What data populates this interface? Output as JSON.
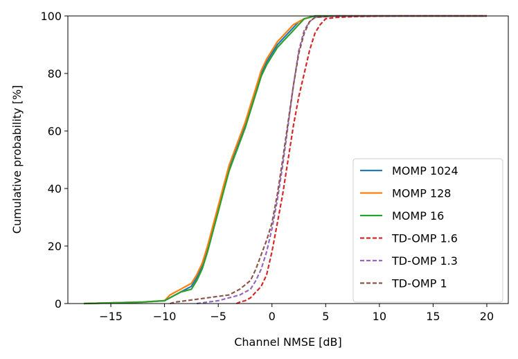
{
  "chart_data": {
    "type": "line",
    "title": "",
    "xlabel": "Channel NMSE [dB]",
    "ylabel": "Cumulative probability [%]",
    "xlim": [
      -19,
      22
    ],
    "ylim": [
      0,
      100
    ],
    "xticks": [
      -15,
      -10,
      -5,
      0,
      5,
      10,
      15,
      20
    ],
    "xtick_labels": [
      "−15",
      "−10",
      "−5",
      "0",
      "5",
      "10",
      "15",
      "20"
    ],
    "yticks": [
      0,
      20,
      40,
      60,
      80,
      100
    ],
    "ytick_labels": [
      "0",
      "20",
      "40",
      "60",
      "80",
      "100"
    ],
    "grid": false,
    "legend_position": "lower-right",
    "series": [
      {
        "name": "MOMP 1024",
        "color": "#1f77b4",
        "dash": "solid",
        "x": [
          -17.5,
          -12,
          -10,
          -9.5,
          -8.5,
          -7.5,
          -7,
          -6.5,
          -6,
          -5.5,
          -5,
          -4.5,
          -4,
          -3.5,
          -3,
          -2.5,
          -2,
          -1.5,
          -1,
          -0.5,
          0,
          0.5,
          1,
          1.5,
          2,
          2.5,
          3,
          3.5,
          4,
          20
        ],
        "y": [
          0,
          0.5,
          1,
          2,
          4,
          6,
          9,
          13,
          19,
          26,
          33,
          40,
          47,
          52,
          57,
          62,
          68,
          74,
          80,
          84,
          87,
          90,
          92,
          94,
          96,
          98,
          99,
          99.5,
          100,
          100
        ]
      },
      {
        "name": "MOMP 128",
        "color": "#ff7f0e",
        "dash": "solid",
        "x": [
          -17.5,
          -12,
          -10,
          -9.5,
          -8.5,
          -7.5,
          -7,
          -6.5,
          -6,
          -5.5,
          -5,
          -4.5,
          -4,
          -3.5,
          -3,
          -2.5,
          -2,
          -1.5,
          -1,
          -0.5,
          0,
          0.5,
          1,
          1.5,
          2,
          2.5,
          3,
          3.5,
          4,
          20
        ],
        "y": [
          0,
          0.5,
          1,
          3,
          5,
          7,
          10,
          14,
          20,
          27,
          34,
          41,
          48,
          53,
          58,
          63,
          69,
          75,
          81,
          85,
          88,
          91,
          93,
          95,
          97,
          98,
          99,
          99.5,
          100,
          100
        ]
      },
      {
        "name": "MOMP 16",
        "color": "#2ca02c",
        "dash": "solid",
        "x": [
          -17.5,
          -12,
          -10,
          -9.5,
          -8.5,
          -7.5,
          -7,
          -6.5,
          -6,
          -5.5,
          -5,
          -4.5,
          -4,
          -3.5,
          -3,
          -2.5,
          -2,
          -1.5,
          -1,
          -0.5,
          0,
          0.5,
          1,
          1.5,
          2,
          2.5,
          3,
          3.5,
          4,
          20
        ],
        "y": [
          0,
          0.5,
          1,
          2,
          4,
          5,
          8,
          12,
          18,
          25,
          32,
          39,
          46,
          51,
          56,
          61,
          67,
          73,
          79,
          83,
          86,
          89,
          91,
          93,
          95,
          97,
          99,
          99.5,
          100,
          100
        ]
      },
      {
        "name": "TD-OMP 1.6",
        "color": "#d62728",
        "dash": "dashed",
        "x": [
          -3.3,
          -3,
          -2.5,
          -2,
          -1.5,
          -1,
          -0.5,
          0,
          0.5,
          1,
          1.5,
          2,
          2.5,
          3,
          3.5,
          4,
          4.5,
          5,
          6,
          8,
          12,
          20
        ],
        "y": [
          0,
          0.5,
          1,
          2,
          4,
          6,
          10,
          18,
          28,
          38,
          50,
          62,
          72,
          80,
          88,
          94,
          97,
          99,
          99.5,
          99.8,
          100,
          100
        ]
      },
      {
        "name": "TD-OMP 1.3",
        "color": "#9467bd",
        "dash": "dashed",
        "x": [
          -7,
          -6,
          -5,
          -4,
          -3,
          -2,
          -1.5,
          -1,
          -0.5,
          0,
          0.5,
          1,
          1.5,
          2,
          2.5,
          3,
          3.5,
          4,
          6,
          20
        ],
        "y": [
          0,
          0.5,
          1,
          2,
          3,
          5,
          8,
          12,
          18,
          26,
          36,
          48,
          62,
          76,
          88,
          95,
          98,
          99.5,
          100,
          100
        ]
      },
      {
        "name": "TD-OMP 1",
        "color": "#8c564b",
        "dash": "dashed",
        "x": [
          -9.5,
          -9,
          -8,
          -7,
          -6,
          -5,
          -4,
          -3,
          -2,
          -1.5,
          -1,
          -0.5,
          0,
          0.5,
          1,
          1.5,
          2,
          2.5,
          3,
          3.5,
          4,
          6,
          20
        ],
        "y": [
          0,
          0.5,
          1,
          1.5,
          2,
          2.5,
          3,
          5,
          8,
          12,
          17,
          22,
          28,
          38,
          50,
          63,
          76,
          87,
          94,
          98,
          99.5,
          100,
          100
        ]
      }
    ]
  }
}
